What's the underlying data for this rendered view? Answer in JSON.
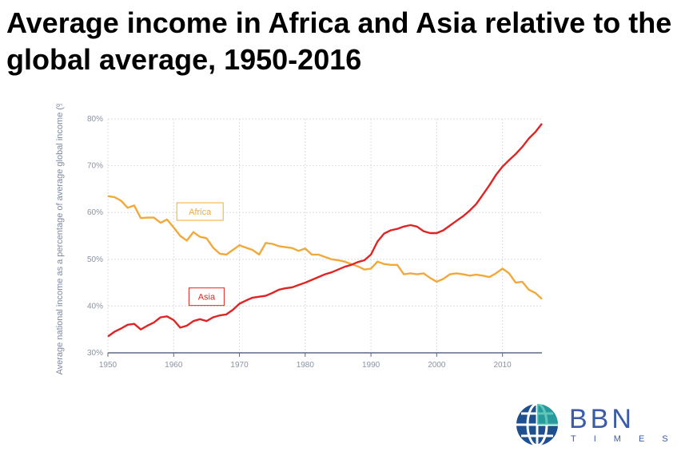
{
  "title": "Average income in Africa and Asia relative to the global average, 1950-2016",
  "logo": {
    "text": "BBN",
    "sub": "TIMES"
  },
  "chart_data": {
    "type": "line",
    "title": "Average income in Africa and Asia relative to the global average, 1950-2016",
    "ylabel": "Average national income as a percentage of average global income (%)",
    "xlabel": "",
    "xlim": [
      1950,
      2016
    ],
    "ylim": [
      30,
      80
    ],
    "x_ticks": [
      "1950",
      "1960",
      "1970",
      "1980",
      "1990",
      "2000",
      "2010"
    ],
    "y_ticks": [
      "30%",
      "40%",
      "50%",
      "60%",
      "70%",
      "80%"
    ],
    "grid": true,
    "colors": {
      "Africa": "#f2a93b",
      "Asia": "#e02424"
    },
    "series": [
      {
        "name": "Africa",
        "x": [
          1950,
          1951,
          1952,
          1953,
          1954,
          1955,
          1956,
          1957,
          1958,
          1959,
          1960,
          1961,
          1962,
          1963,
          1964,
          1965,
          1966,
          1967,
          1968,
          1969,
          1970,
          1971,
          1972,
          1973,
          1974,
          1975,
          1976,
          1977,
          1978,
          1979,
          1980,
          1981,
          1982,
          1983,
          1984,
          1985,
          1986,
          1987,
          1988,
          1989,
          1990,
          1991,
          1992,
          1993,
          1994,
          1995,
          1996,
          1997,
          1998,
          1999,
          2000,
          2001,
          2002,
          2003,
          2004,
          2005,
          2006,
          2007,
          2008,
          2009,
          2010,
          2011,
          2012,
          2013,
          2014,
          2015,
          2016
        ],
        "values": [
          63.5,
          63.3,
          62.5,
          61.0,
          61.5,
          58.8,
          58.9,
          58.9,
          57.8,
          58.5,
          56.8,
          55.0,
          54.0,
          55.8,
          54.8,
          54.5,
          52.5,
          51.2,
          51.0,
          52.0,
          53.0,
          52.5,
          52.0,
          51.0,
          53.5,
          53.3,
          52.8,
          52.6,
          52.4,
          51.8,
          52.3,
          51.0,
          51.0,
          50.5,
          50.0,
          49.8,
          49.5,
          49.0,
          48.5,
          47.8,
          48.0,
          49.5,
          49.0,
          48.8,
          48.8,
          46.8,
          47.0,
          46.8,
          47.0,
          46.0,
          45.2,
          45.8,
          46.8,
          47.0,
          46.8,
          46.5,
          46.7,
          46.5,
          46.2,
          47.0,
          48.0,
          47.0,
          45.0,
          45.2,
          43.5,
          42.8,
          41.5
        ]
      },
      {
        "name": "Asia",
        "x": [
          1950,
          1951,
          1952,
          1953,
          1954,
          1955,
          1956,
          1957,
          1958,
          1959,
          1960,
          1961,
          1962,
          1963,
          1964,
          1965,
          1966,
          1967,
          1968,
          1969,
          1970,
          1971,
          1972,
          1973,
          1974,
          1975,
          1976,
          1977,
          1978,
          1979,
          1980,
          1981,
          1982,
          1983,
          1984,
          1985,
          1986,
          1987,
          1988,
          1989,
          1990,
          1991,
          1992,
          1993,
          1994,
          1995,
          1996,
          1997,
          1998,
          1999,
          2000,
          2001,
          2002,
          2003,
          2004,
          2005,
          2006,
          2007,
          2008,
          2009,
          2010,
          2011,
          2012,
          2013,
          2014,
          2015,
          2016
        ],
        "values": [
          33.5,
          34.5,
          35.2,
          36.0,
          36.2,
          35.0,
          35.8,
          36.5,
          37.6,
          37.8,
          37.0,
          35.4,
          35.8,
          36.8,
          37.2,
          36.8,
          37.6,
          38.0,
          38.2,
          39.2,
          40.5,
          41.2,
          41.8,
          42.0,
          42.2,
          42.8,
          43.5,
          43.8,
          44.0,
          44.5,
          45.0,
          45.6,
          46.2,
          46.8,
          47.2,
          47.8,
          48.4,
          48.8,
          49.4,
          49.8,
          51.0,
          53.8,
          55.5,
          56.2,
          56.5,
          57.0,
          57.3,
          57.0,
          56.0,
          55.6,
          55.6,
          56.2,
          57.2,
          58.2,
          59.2,
          60.4,
          61.8,
          63.8,
          65.8,
          68.0,
          69.8,
          71.2,
          72.5,
          74.0,
          75.8,
          77.2,
          79.0
        ]
      }
    ],
    "annotations": [
      {
        "text": "Africa",
        "series": "Africa",
        "x": 1964,
        "y": 60.2
      },
      {
        "text": "Asia",
        "series": "Asia",
        "x": 1965,
        "y": 42.0
      }
    ]
  }
}
